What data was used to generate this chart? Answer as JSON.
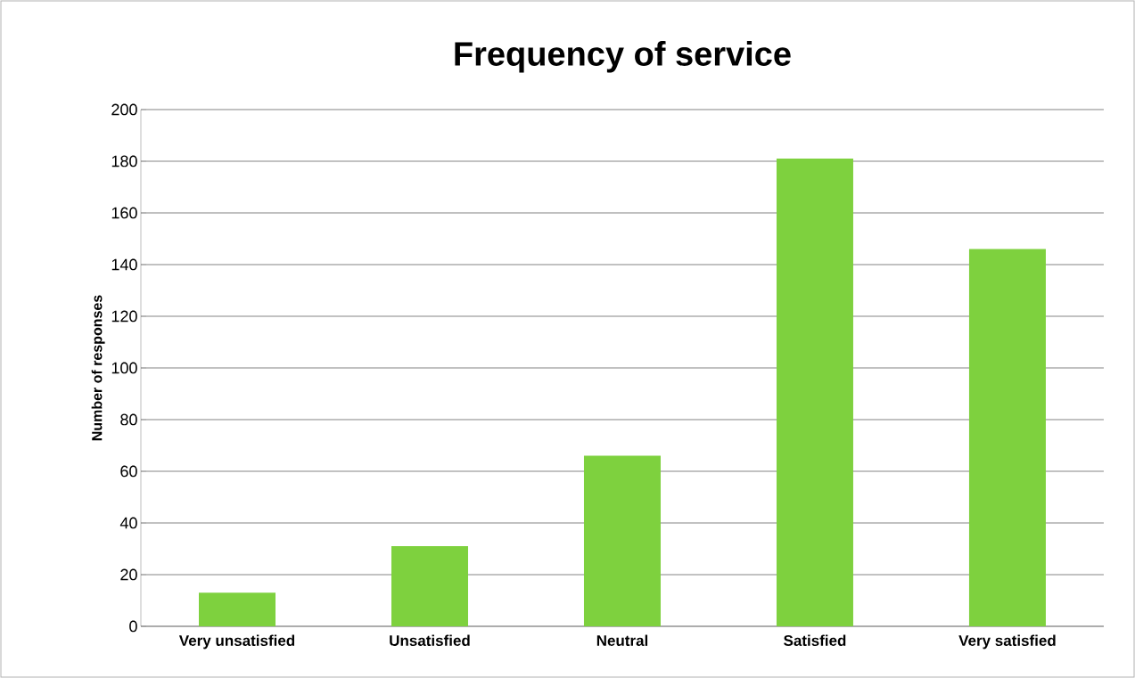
{
  "chart_data": {
    "type": "bar",
    "title": "Frequency of service",
    "ylabel": "Number of responses",
    "categories": [
      "Very unsatisfied",
      "Unsatisfied",
      "Neutral",
      "Satisfied",
      "Very satisfied"
    ],
    "values": [
      13,
      31,
      66,
      181,
      146
    ],
    "color": "#7ed13e",
    "ylim": [
      0,
      200
    ],
    "yticks": [
      0,
      20,
      40,
      60,
      80,
      100,
      120,
      140,
      160,
      180,
      200
    ],
    "grid": "y"
  }
}
